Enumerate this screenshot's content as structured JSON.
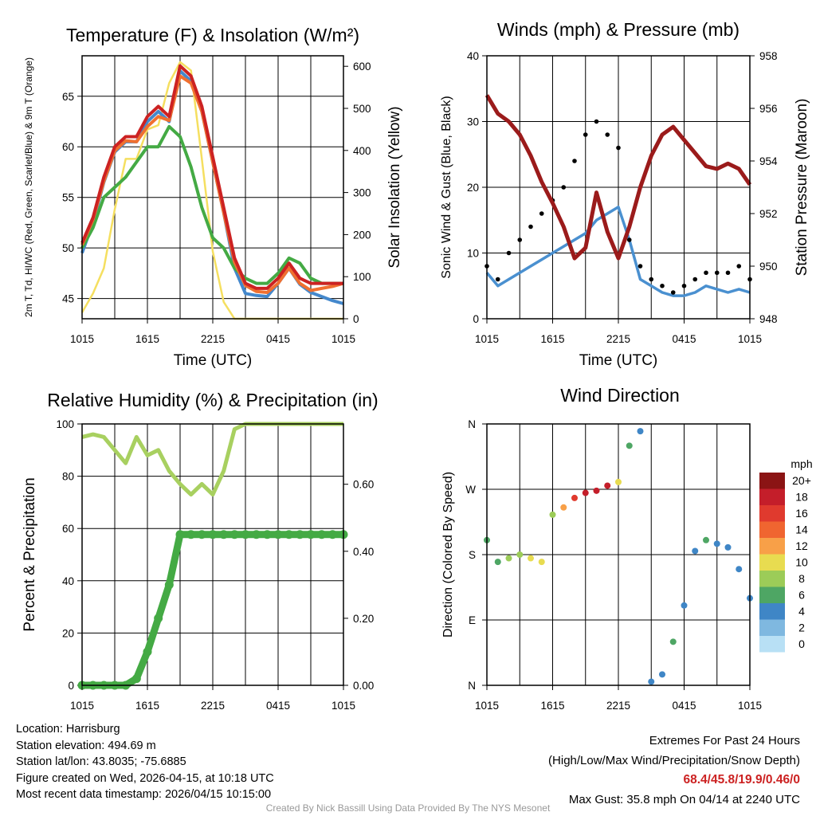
{
  "chart_data": [
    {
      "type": "line",
      "title": "Temperature (F) & Insolation (W/m²)",
      "xlabel": "Time (UTC)",
      "ylabel": "2m T, Td, HI/WC (Red, Green, Scarlet/Blue) & 9m T (Orange)",
      "y2label": "Solar Insolation (Yellow)",
      "x_ticks": [
        "1015",
        "1615",
        "2215",
        "0415",
        "1015"
      ],
      "ylim": [
        43,
        69
      ],
      "y_ticks": [
        45,
        50,
        55,
        60,
        65
      ],
      "y2lim": [
        0,
        625
      ],
      "y2_ticks": [
        0,
        100,
        200,
        300,
        400,
        500,
        600
      ],
      "x_hours": [
        0,
        1,
        2,
        3,
        4,
        5,
        6,
        7,
        8,
        9,
        10,
        11,
        12,
        13,
        14,
        15,
        16,
        17,
        18,
        19,
        20,
        21,
        22,
        23,
        24
      ],
      "series": [
        {
          "name": "2m T",
          "color": "#cc2222",
          "values": [
            50.5,
            53,
            57,
            60,
            61,
            61,
            63,
            64,
            63,
            68,
            67,
            64,
            59,
            54,
            49,
            46.5,
            46,
            46,
            47,
            48.5,
            47,
            46.5,
            46.5,
            46.5,
            46.5
          ]
        },
        {
          "name": "9m T",
          "color": "#f07030",
          "values": [
            50.3,
            52.8,
            56.6,
            59.6,
            60.6,
            60.5,
            62,
            63,
            62.6,
            67,
            66.3,
            63.5,
            58.5,
            53.5,
            48.6,
            46.3,
            45.7,
            45.6,
            46.5,
            48,
            46.5,
            45.8,
            46,
            46.2,
            46.5
          ]
        },
        {
          "name": "Td",
          "color": "#44aa44",
          "values": [
            50,
            52,
            55,
            56,
            57,
            58.5,
            60,
            60,
            62,
            61,
            58,
            54,
            51,
            50,
            48,
            47,
            46.5,
            46.5,
            47.5,
            49,
            48.5,
            47,
            46.5,
            46.5,
            46.5
          ]
        },
        {
          "name": "HI/WC",
          "color": "#4488cc",
          "values": [
            49.5,
            52.5,
            56.5,
            59.5,
            60.5,
            60.5,
            62.5,
            63.5,
            62.5,
            67.5,
            66.5,
            63.5,
            58.5,
            53.5,
            48,
            45.5,
            45.3,
            45.2,
            46.5,
            48,
            46.4,
            45.6,
            45.2,
            44.8,
            44.5
          ]
        },
        {
          "name": "Solar Insolation",
          "axis": "y2",
          "color": "#f5df60",
          "values": [
            15,
            60,
            120,
            260,
            380,
            380,
            450,
            460,
            560,
            610,
            590,
            380,
            160,
            40,
            0,
            0,
            0,
            0,
            0,
            0,
            0,
            0,
            0,
            0,
            0
          ]
        }
      ]
    },
    {
      "type": "line",
      "title": "Winds (mph) & Pressure (mb)",
      "xlabel": "Time (UTC)",
      "ylabel": "Sonic Wind & Gust (Blue, Black)",
      "y2label": "Station Pressure (Maroon)",
      "x_ticks": [
        "1015",
        "1615",
        "2215",
        "0415",
        "1015"
      ],
      "ylim": [
        0,
        40
      ],
      "y_ticks": [
        0,
        10,
        20,
        30,
        40
      ],
      "y2lim": [
        948,
        958
      ],
      "y2_ticks": [
        948,
        950,
        952,
        954,
        956,
        958
      ],
      "x_hours": [
        0,
        1,
        2,
        3,
        4,
        5,
        6,
        7,
        8,
        9,
        10,
        11,
        12,
        13,
        14,
        15,
        16,
        17,
        18,
        19,
        20,
        21,
        22,
        23,
        24
      ],
      "series": [
        {
          "name": "Sonic Wind",
          "color": "#4a90d0",
          "values": [
            7,
            5,
            6,
            7,
            8,
            9,
            10,
            11,
            12,
            13,
            15,
            16,
            17,
            12,
            6,
            5,
            4,
            3.5,
            3.5,
            4,
            5,
            4.5,
            4,
            4.5,
            4
          ]
        },
        {
          "name": "Gust",
          "color": "#000000",
          "style": "dots",
          "values": [
            8,
            6,
            10,
            12,
            14,
            16,
            18,
            20,
            24,
            28,
            30,
            28,
            26,
            12,
            8,
            6,
            5,
            4,
            5,
            6,
            7,
            7,
            7,
            8,
            6
          ]
        },
        {
          "name": "Station Pressure",
          "axis": "y2",
          "color": "#9b1b1b",
          "values": [
            956.5,
            955.8,
            955.5,
            955,
            954.2,
            953.2,
            952.4,
            951.5,
            950.3,
            950.7,
            952.8,
            951.3,
            950.3,
            951.5,
            953,
            954.2,
            955,
            955.3,
            954.8,
            954.3,
            953.8,
            953.7,
            953.9,
            953.7,
            953.1
          ]
        }
      ]
    },
    {
      "type": "line",
      "title": "Relative Humidity (%) & Precipitation (in)",
      "xlabel": "",
      "ylabel": "Percent & Precipitation",
      "x_ticks": [
        "1015",
        "1615",
        "2215",
        "0415",
        "1015"
      ],
      "ylim": [
        0,
        100
      ],
      "y_ticks": [
        0,
        20,
        40,
        60,
        80,
        100
      ],
      "y2lim": [
        0,
        0.78
      ],
      "y2_ticks": [
        0.0,
        0.2,
        0.4,
        0.6
      ],
      "y2_tick_labels": [
        "0.00",
        "0.20",
        "0.40",
        "0.60"
      ],
      "x_hours": [
        0,
        1,
        2,
        3,
        4,
        5,
        6,
        7,
        8,
        9,
        10,
        11,
        12,
        13,
        14,
        15,
        16,
        17,
        18,
        19,
        20,
        21,
        22,
        23,
        24
      ],
      "series": [
        {
          "name": "Relative Humidity",
          "color": "#a8d060",
          "values": [
            95,
            96,
            95,
            90,
            85,
            95,
            88,
            90,
            82,
            77,
            73,
            77,
            73,
            82,
            98,
            100,
            100,
            100,
            100,
            100,
            100,
            100,
            100,
            100,
            100
          ]
        },
        {
          "name": "Precipitation",
          "axis": "y2",
          "color": "#44aa44",
          "style": "dots",
          "values": [
            0,
            0,
            0,
            0,
            0,
            0.02,
            0.1,
            0.2,
            0.3,
            0.45,
            0.45,
            0.45,
            0.45,
            0.45,
            0.45,
            0.45,
            0.45,
            0.45,
            0.45,
            0.45,
            0.45,
            0.45,
            0.45,
            0.45,
            0.45
          ]
        }
      ]
    },
    {
      "type": "scatter",
      "title": "Wind Direction",
      "ylabel": "Direction (Colored By Speed)",
      "x_ticks": [
        "1015",
        "1615",
        "2215",
        "0415",
        "1015"
      ],
      "y_ticks": [
        "N",
        "E",
        "S",
        "W",
        "N"
      ],
      "ylim": [
        0,
        360
      ],
      "colorbar": {
        "title": "mph",
        "labels": [
          "20+",
          "18",
          "16",
          "14",
          "12",
          "10",
          "8",
          "6",
          "4",
          "2",
          "0"
        ],
        "colors": [
          "#8b1414",
          "#c41e2a",
          "#e03a2e",
          "#f06530",
          "#f8a048",
          "#e8dc50",
          "#9ccc58",
          "#4ea664",
          "#3f86c6",
          "#7fb8e0",
          "#b8e0f5"
        ]
      },
      "x_hours": [
        0,
        1,
        2,
        3,
        4,
        5,
        6,
        7,
        8,
        9,
        10,
        11,
        12,
        13,
        14,
        15,
        16,
        17,
        18,
        19,
        20,
        21,
        22,
        23,
        24
      ],
      "direction_deg": [
        200,
        170,
        175,
        180,
        175,
        170,
        235,
        245,
        258,
        265,
        268,
        275,
        280,
        330,
        350,
        5,
        15,
        60,
        110,
        185,
        200,
        195,
        190,
        160,
        120
      ],
      "speed_mph": [
        5,
        6,
        7,
        8,
        10,
        10,
        8,
        12,
        16,
        18,
        18,
        18,
        10,
        5,
        3,
        3,
        4,
        5,
        3,
        4,
        5,
        4,
        4,
        3,
        4
      ]
    }
  ],
  "station": {
    "location": "Location: Harrisburg",
    "elevation": "Station elevation: 494.69 m",
    "latlon": "Station lat/lon: 43.8035; -75.6885",
    "created": "Figure created on Wed, 2026-04-15, at 10:18 UTC",
    "recent": "Most recent data timestamp: 2026/04/15 10:15:00"
  },
  "extremes": {
    "title": "Extremes For Past 24 Hours",
    "subtitle": "(High/Low/Max Wind/Precipitation/Snow Depth)",
    "values": "68.4/45.8/19.9/0.46/0",
    "max_gust": "Max Gust: 35.8 mph On 04/14 at 2240 UTC"
  },
  "credit": "Created By Nick Bassill Using Data Provided By The NYS Mesonet"
}
